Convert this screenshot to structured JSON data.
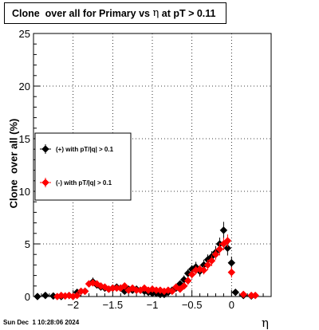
{
  "title": {
    "part1": "Clone  over all for Primary vs ",
    "symbol": "η",
    "part2": " at pT > 0.11"
  },
  "timestamp": "Sun Dec  1 10:28:06 2024",
  "chart_data": {
    "type": "scatter",
    "xlabel": "η",
    "ylabel": "Clone  over all (%)",
    "xlim": [
      -2.5,
      0.5
    ],
    "ylim": [
      0,
      25
    ],
    "xticks": [
      -2,
      -1.5,
      -1,
      -0.5,
      0
    ],
    "xtick_labels": [
      "−2",
      "−1.5",
      "−1",
      "−0.5",
      "0"
    ],
    "yticks": [
      0,
      5,
      10,
      15,
      20,
      25
    ],
    "grid": true,
    "legend_placement": "left-middle",
    "series": [
      {
        "name": "(+) with pT/|q| > 0.1",
        "color": "#000000",
        "x": [
          -2.45,
          -2.35,
          -2.25,
          -2.15,
          -2.05,
          -1.95,
          -1.85,
          -1.75,
          -1.7,
          -1.65,
          -1.6,
          -1.55,
          -1.5,
          -1.45,
          -1.4,
          -1.35,
          -1.3,
          -1.25,
          -1.2,
          -1.15,
          -1.1,
          -1.05,
          -1.0,
          -0.95,
          -0.9,
          -0.85,
          -0.8,
          -0.75,
          -0.7,
          -0.65,
          -0.6,
          -0.55,
          -0.5,
          -0.45,
          -0.4,
          -0.35,
          -0.3,
          -0.25,
          -0.2,
          -0.15,
          -0.1,
          -0.05,
          0.0,
          0.05,
          0.15,
          0.25
        ],
        "y": [
          0.0,
          0.1,
          0.05,
          0.0,
          0.1,
          0.4,
          0.5,
          1.4,
          1.1,
          0.9,
          0.8,
          0.7,
          0.8,
          0.9,
          0.8,
          0.5,
          0.7,
          0.6,
          0.7,
          0.6,
          0.5,
          0.4,
          0.3,
          0.3,
          0.2,
          0.2,
          0.4,
          0.6,
          0.8,
          1.2,
          1.6,
          2.2,
          2.6,
          2.8,
          2.4,
          3.0,
          3.5,
          3.8,
          4.2,
          5.0,
          6.3,
          4.6,
          3.2,
          0.4,
          0.1,
          0.05
        ],
        "err": [
          0.1,
          0.2,
          0.2,
          0.1,
          0.2,
          0.3,
          0.3,
          0.4,
          0.3,
          0.3,
          0.3,
          0.3,
          0.3,
          0.3,
          0.3,
          0.2,
          0.3,
          0.3,
          0.3,
          0.3,
          0.2,
          0.2,
          0.2,
          0.2,
          0.2,
          0.2,
          0.2,
          0.3,
          0.3,
          0.3,
          0.4,
          0.4,
          0.4,
          0.5,
          0.5,
          0.5,
          0.5,
          0.5,
          0.6,
          0.6,
          0.8,
          0.7,
          0.6,
          0.2,
          0.1,
          0.1
        ]
      },
      {
        "name": "(-) with pT/|q| > 0.1",
        "color": "#ff0000",
        "x": [
          -2.2,
          -2.15,
          -2.1,
          -2.05,
          -2.0,
          -1.95,
          -1.9,
          -1.85,
          -1.8,
          -1.75,
          -1.7,
          -1.65,
          -1.6,
          -1.55,
          -1.5,
          -1.45,
          -1.4,
          -1.35,
          -1.3,
          -1.25,
          -1.2,
          -1.15,
          -1.1,
          -1.05,
          -1.0,
          -0.95,
          -0.9,
          -0.85,
          -0.8,
          -0.75,
          -0.7,
          -0.65,
          -0.6,
          -0.55,
          -0.5,
          -0.45,
          -0.4,
          -0.35,
          -0.3,
          -0.25,
          -0.2,
          -0.15,
          -0.1,
          -0.05,
          0.0,
          0.15,
          0.25,
          0.3
        ],
        "y": [
          0.0,
          0.1,
          0.05,
          0.1,
          0.0,
          0.1,
          0.5,
          0.5,
          1.2,
          1.3,
          1.2,
          1.0,
          0.9,
          0.7,
          0.8,
          0.8,
          0.8,
          1.0,
          0.6,
          0.8,
          0.6,
          0.6,
          0.8,
          0.6,
          0.7,
          0.6,
          0.6,
          0.5,
          0.6,
          0.5,
          0.9,
          0.7,
          1.0,
          1.5,
          2.1,
          2.5,
          2.6,
          2.5,
          3.0,
          3.4,
          4.0,
          4.5,
          5.0,
          5.3,
          2.3,
          0.2,
          0.1,
          0.1
        ],
        "err": [
          0.1,
          0.1,
          0.1,
          0.2,
          0.1,
          0.2,
          0.3,
          0.3,
          0.3,
          0.3,
          0.3,
          0.3,
          0.3,
          0.3,
          0.3,
          0.3,
          0.3,
          0.3,
          0.3,
          0.3,
          0.3,
          0.2,
          0.3,
          0.2,
          0.3,
          0.2,
          0.2,
          0.2,
          0.2,
          0.2,
          0.3,
          0.3,
          0.3,
          0.4,
          0.4,
          0.4,
          0.4,
          0.4,
          0.5,
          0.5,
          0.5,
          0.6,
          0.6,
          0.6,
          0.5,
          0.1,
          0.1,
          0.1
        ]
      }
    ]
  }
}
